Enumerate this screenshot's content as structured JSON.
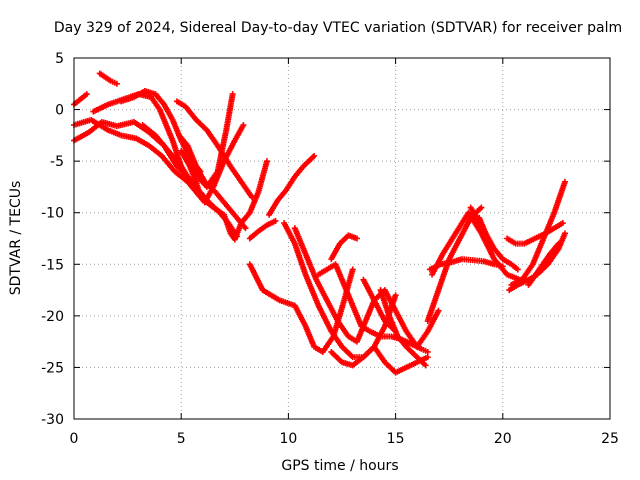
{
  "chart_data": {
    "type": "scatter",
    "title": "Day 329 of 2024, Sidereal Day-to-day VTEC variation (SDTVAR) for receiver palm",
    "xlabel": "GPS time / hours",
    "ylabel": "SDTVAR / TECUs",
    "xlim": [
      0,
      25
    ],
    "ylim": [
      -30,
      5
    ],
    "x_ticks": [
      0,
      5,
      10,
      15,
      20,
      25
    ],
    "y_ticks": [
      5,
      0,
      -5,
      -10,
      -15,
      -20,
      -25,
      -30
    ],
    "x_tick_labels": [
      "0",
      "5",
      "10",
      "15",
      "20",
      "25"
    ],
    "y_tick_labels": [
      "5",
      "0",
      "-5",
      "-10",
      "-15",
      "-20",
      "-25",
      "-30"
    ],
    "grid": true,
    "marker": "+",
    "color": "#ff0000",
    "series": [
      {
        "name": "s1",
        "x": [
          0.0,
          0.8,
          1.6,
          2.2,
          2.9,
          3.5,
          4.1,
          4.7,
          5.3,
          5.9,
          6.5,
          7.0,
          7.3,
          7.5,
          7.8,
          8.2,
          8.6,
          9.0
        ],
        "y": [
          -1.5,
          -1.0,
          -2.0,
          -2.5,
          -2.8,
          -3.5,
          -4.5,
          -6.0,
          -7.0,
          -8.5,
          -9.5,
          -10.2,
          -12.0,
          -12.6,
          -11.0,
          -10.0,
          -8.0,
          -5.0
        ]
      },
      {
        "name": "s2",
        "x": [
          0.0,
          0.7,
          1.3,
          2.0,
          2.8,
          3.5,
          4.2,
          4.8,
          5.3,
          5.8,
          6.3,
          6.8,
          7.2,
          7.6
        ],
        "y": [
          -3.0,
          -2.2,
          -1.2,
          -1.6,
          -1.2,
          -2.2,
          -3.5,
          -5.5,
          -6.5,
          -7.8,
          -9.0,
          -10.0,
          -11.0,
          -12.3
        ]
      },
      {
        "name": "s3",
        "x": [
          1.2,
          1.7,
          2.0
        ],
        "y": [
          3.5,
          2.8,
          2.5
        ]
      },
      {
        "name": "s4",
        "x": [
          0.0,
          0.3,
          0.6
        ],
        "y": [
          0.5,
          1.0,
          1.5
        ]
      },
      {
        "name": "s5",
        "x": [
          0.9,
          1.6,
          2.3,
          3.0,
          3.6,
          4.0,
          4.6,
          5.0,
          5.3,
          5.6
        ],
        "y": [
          -0.2,
          0.5,
          1.0,
          1.5,
          1.2,
          0.0,
          -3.0,
          -5.5,
          -6.5,
          -7.5
        ]
      },
      {
        "name": "s6",
        "x": [
          2.2,
          2.8,
          3.3,
          3.8,
          4.2,
          4.6,
          5.0,
          5.5,
          5.9
        ],
        "y": [
          0.8,
          1.2,
          1.8,
          1.5,
          0.5,
          -1.0,
          -3.0,
          -5.0,
          -6.0
        ]
      },
      {
        "name": "s7",
        "x": [
          3.2,
          3.8,
          4.2,
          4.6,
          5.0,
          5.3
        ],
        "y": [
          -1.5,
          -2.5,
          -3.5,
          -4.5,
          -5.5,
          -6.5
        ]
      },
      {
        "name": "s8",
        "x": [
          5.0,
          5.4,
          5.7,
          5.9,
          6.1,
          6.5,
          7.0,
          7.5,
          7.9
        ],
        "y": [
          -4.0,
          -5.5,
          -7.0,
          -8.5,
          -9.0,
          -7.5,
          -5.0,
          -3.0,
          -1.5
        ]
      },
      {
        "name": "s9",
        "x": [
          5.5,
          5.9,
          6.2,
          6.7,
          7.1,
          7.4
        ],
        "y": [
          -5.5,
          -6.8,
          -7.5,
          -6.0,
          -2.0,
          1.5
        ]
      },
      {
        "name": "s10",
        "x": [
          4.9,
          5.3,
          5.7,
          6.1,
          6.6,
          7.2,
          7.6,
          8.0
        ],
        "y": [
          -2.5,
          -3.5,
          -5.5,
          -7.0,
          -8.0,
          -9.5,
          -10.5,
          -11.5
        ]
      },
      {
        "name": "s11",
        "x": [
          4.8,
          5.2,
          5.7,
          6.2,
          6.7,
          7.3,
          7.8,
          8.3
        ],
        "y": [
          0.8,
          0.3,
          -1.0,
          -2.0,
          -3.5,
          -5.5,
          -7.0,
          -8.5
        ]
      },
      {
        "name": "s12",
        "x": [
          8.2,
          8.6,
          9.0,
          9.4
        ],
        "y": [
          -12.5,
          -11.8,
          -11.2,
          -10.8
        ]
      },
      {
        "name": "s13",
        "x": [
          9.1,
          9.5,
          9.9,
          10.3,
          10.7,
          11.2
        ],
        "y": [
          -10.2,
          -8.8,
          -7.8,
          -6.5,
          -5.5,
          -4.5
        ]
      },
      {
        "name": "s14",
        "x": [
          9.8,
          10.3,
          10.8,
          11.4,
          12.0,
          12.5,
          13.0,
          13.5,
          14.0,
          14.5,
          15.0
        ],
        "y": [
          -11.0,
          -13.0,
          -16.0,
          -19.0,
          -21.5,
          -23.0,
          -24.0,
          -24.0,
          -23.0,
          -21.0,
          -18.0
        ]
      },
      {
        "name": "s15",
        "x": [
          8.2,
          8.8,
          9.6,
          10.3,
          10.8,
          11.2,
          11.6,
          12.1,
          12.6,
          13.0
        ],
        "y": [
          -15.0,
          -17.5,
          -18.5,
          -19.0,
          -21.0,
          -23.0,
          -23.5,
          -22.0,
          -18.5,
          -15.5
        ]
      },
      {
        "name": "s16",
        "x": [
          11.4,
          11.8,
          12.2,
          12.6,
          13.0,
          13.4,
          13.8,
          14.3,
          14.8,
          15.3,
          15.8,
          16.2,
          16.5
        ],
        "y": [
          -16.0,
          -15.5,
          -15.0,
          -17.0,
          -19.0,
          -21.0,
          -21.5,
          -22.0,
          -22.0,
          -22.3,
          -22.8,
          -23.2,
          -23.5
        ]
      },
      {
        "name": "s17",
        "x": [
          10.3,
          10.8,
          11.3,
          11.8,
          12.3,
          12.8,
          13.2,
          13.6,
          14.0,
          14.5,
          15.0,
          15.5,
          16.0,
          16.5,
          17.0
        ],
        "y": [
          -11.5,
          -14.0,
          -16.5,
          -18.5,
          -20.5,
          -22.0,
          -22.5,
          -20.5,
          -18.5,
          -17.5,
          -19.5,
          -21.5,
          -23.0,
          -21.5,
          -19.5
        ]
      },
      {
        "name": "s18",
        "x": [
          12.0,
          12.5,
          13.0,
          13.5,
          14.0,
          14.5,
          15.0,
          15.5,
          16.0,
          16.5
        ],
        "y": [
          -23.5,
          -24.5,
          -24.8,
          -24.0,
          -23.0,
          -24.5,
          -25.5,
          -25.0,
          -24.5,
          -24.0
        ]
      },
      {
        "name": "s19",
        "x": [
          12.0,
          12.4,
          12.8,
          13.2
        ],
        "y": [
          -14.5,
          -13.0,
          -12.2,
          -12.5
        ]
      },
      {
        "name": "s20",
        "x": [
          14.3,
          14.7,
          15.1,
          15.5,
          16.0,
          16.4
        ],
        "y": [
          -17.5,
          -20.0,
          -22.0,
          -23.0,
          -24.0,
          -24.8
        ]
      },
      {
        "name": "s21",
        "x": [
          13.5,
          14.0,
          14.5,
          15.0
        ],
        "y": [
          -16.5,
          -18.5,
          -20.5,
          -21.5
        ]
      },
      {
        "name": "s22",
        "x": [
          16.5,
          17.0,
          17.5,
          18.0,
          18.5,
          19.0
        ],
        "y": [
          -20.5,
          -17.5,
          -14.5,
          -12.5,
          -10.5,
          -9.5
        ]
      },
      {
        "name": "s23",
        "x": [
          16.7,
          17.2,
          17.8,
          18.4,
          19.0,
          19.6,
          20.2,
          20.8
        ],
        "y": [
          -16.0,
          -14.0,
          -12.0,
          -10.0,
          -12.0,
          -14.5,
          -16.0,
          -16.5
        ]
      },
      {
        "name": "s24",
        "x": [
          16.6,
          17.1,
          17.6,
          18.1,
          18.6,
          19.1,
          19.6,
          20.0
        ],
        "y": [
          -15.5,
          -15.0,
          -14.8,
          -14.5,
          -14.6,
          -14.7,
          -15.0,
          -15.2
        ]
      },
      {
        "name": "s25",
        "x": [
          18.5,
          18.8,
          19.2,
          19.6,
          20.0,
          20.4,
          20.7
        ],
        "y": [
          -9.5,
          -10.5,
          -12.0,
          -13.5,
          -14.5,
          -15.0,
          -15.5
        ]
      },
      {
        "name": "s26",
        "x": [
          18.9,
          19.2,
          19.5
        ],
        "y": [
          -10.5,
          -12.0,
          -13.5
        ]
      },
      {
        "name": "s27",
        "x": [
          20.4,
          20.9,
          21.4,
          21.9,
          22.4,
          22.9
        ],
        "y": [
          -17.0,
          -16.5,
          -15.0,
          -12.5,
          -10.0,
          -7.0
        ]
      },
      {
        "name": "s28",
        "x": [
          20.3,
          20.7,
          21.2,
          21.6,
          22.1,
          22.6,
          22.9
        ],
        "y": [
          -17.5,
          -17.0,
          -16.5,
          -16.0,
          -15.0,
          -13.5,
          -12.0
        ]
      },
      {
        "name": "s29",
        "x": [
          20.2,
          20.6,
          21.0,
          21.5,
          22.0,
          22.4,
          22.8
        ],
        "y": [
          -12.5,
          -13.0,
          -13.0,
          -12.5,
          -12.0,
          -11.5,
          -11.0
        ]
      },
      {
        "name": "s30",
        "x": [
          21.2,
          21.7,
          22.2,
          22.6
        ],
        "y": [
          -17.0,
          -15.5,
          -14.0,
          -13.0
        ]
      }
    ]
  }
}
